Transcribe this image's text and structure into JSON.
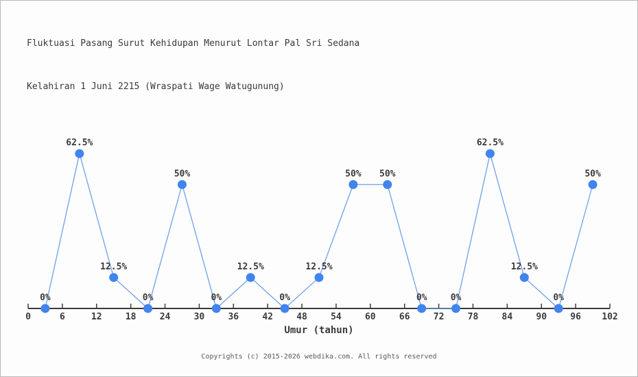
{
  "page": {
    "background": "#fdfdfd",
    "border_color": "#b9b9b9"
  },
  "header": {
    "title_line1": "Fluktuasi Pasang Surut Kehidupan Menurut Lontar Pal Sri Sedana",
    "title_line2": "Kelahiran 1 Juni 2215 (Wraspati Wage Watugunung)"
  },
  "chart_data": {
    "type": "line",
    "title": "Fluktuasi Pasang Surut Kehidupan Menurut Lontar Pal Sri Sedana Kelahiran 1 Juni 2215 (Wraspati Wage Watugunung)",
    "xlabel": "Umur (tahun)",
    "ylabel": "",
    "x": [
      3,
      9,
      15,
      21,
      27,
      33,
      39,
      45,
      51,
      57,
      63,
      69,
      75,
      81,
      87,
      93,
      99
    ],
    "values": [
      0,
      62.5,
      12.5,
      0,
      50,
      0,
      12.5,
      0,
      12.5,
      50,
      50,
      0,
      0,
      62.5,
      12.5,
      0,
      50
    ],
    "point_labels": [
      "0%",
      "62.5%",
      "12.5%",
      "0%",
      "50%",
      "0%",
      "12.5%",
      "0%",
      "12.5%",
      "50%",
      "50%",
      "0%",
      "0%",
      "62.5%",
      "12.5%",
      "0%",
      "50%"
    ],
    "x_ticks": [
      0,
      6,
      12,
      18,
      24,
      30,
      36,
      42,
      48,
      54,
      60,
      66,
      72,
      78,
      84,
      90,
      96,
      102
    ],
    "xlim": [
      0,
      102
    ],
    "ylim": [
      0,
      100
    ],
    "grid": false,
    "legend": false,
    "line_color": "#6f9fe8",
    "marker_color": "#4184ee",
    "axis_color": "#3a3a3a",
    "label_color": "#3a3a3a"
  },
  "footer": {
    "copyright": "Copyrights (c) 2015-2026 webdika.com. All rights reserved"
  }
}
